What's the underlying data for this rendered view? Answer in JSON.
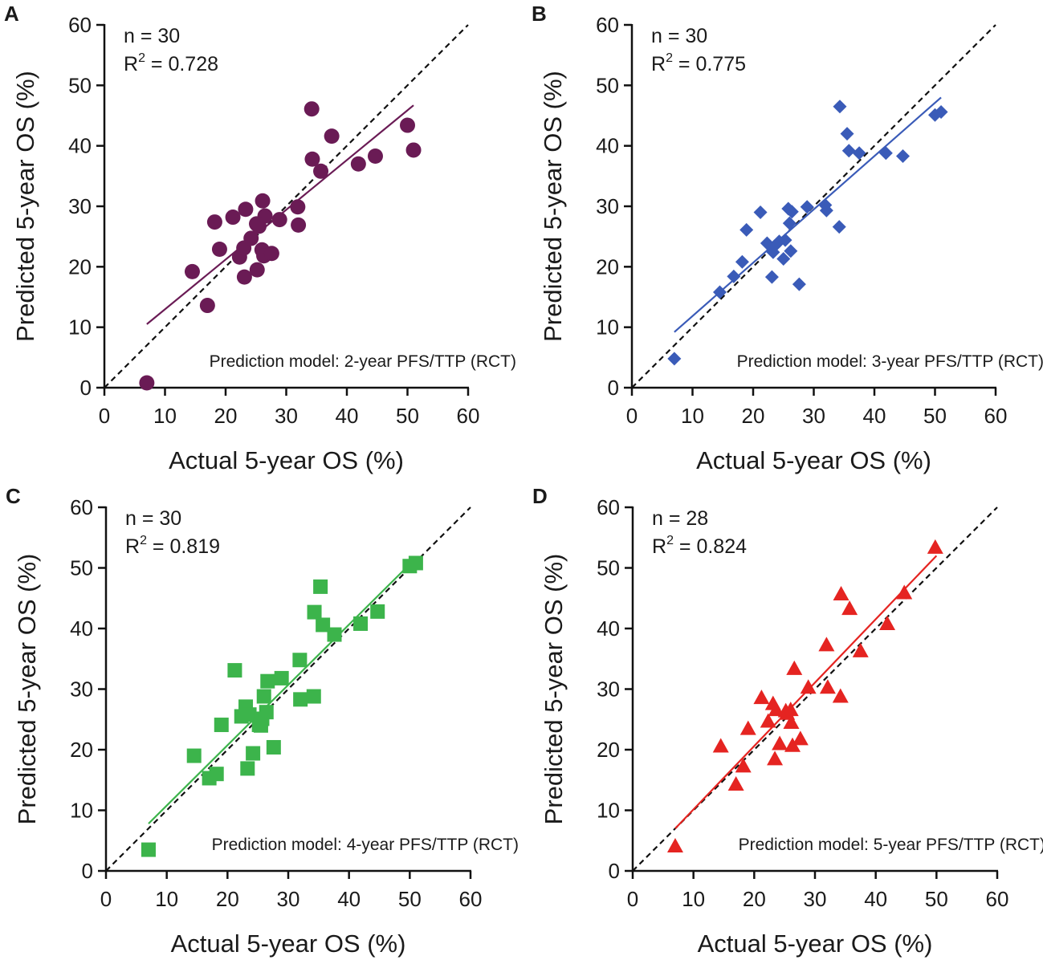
{
  "chart_data": [
    {
      "panel_label": "A",
      "type": "scatter",
      "color": "#6a1b55",
      "marker": "circle",
      "n_text": "n = 30",
      "r2_prefix": "R",
      "r2_sup": "2",
      "r2_value": " = 0.728",
      "annotation": "Prediction model: 2-year PFS/TTP (RCT)",
      "xlabel": "Actual 5-year OS (%)",
      "ylabel": "Predicted 5-year OS (%)",
      "xlim": [
        0,
        60
      ],
      "ylim": [
        0,
        60
      ],
      "xticks": [
        0,
        10,
        20,
        30,
        40,
        50,
        60
      ],
      "yticks": [
        0,
        10,
        20,
        30,
        40,
        50,
        60
      ],
      "identity_line": [
        [
          0,
          0
        ],
        [
          60,
          60
        ]
      ],
      "fit_line": [
        [
          7,
          10.5
        ],
        [
          51,
          46.7
        ]
      ],
      "points": [
        [
          7,
          0.8
        ],
        [
          14.5,
          19.2
        ],
        [
          17,
          13.6
        ],
        [
          18.2,
          27.4
        ],
        [
          19,
          22.9
        ],
        [
          21.2,
          28.2
        ],
        [
          22.3,
          21.6
        ],
        [
          23.1,
          18.3
        ],
        [
          23,
          23.1
        ],
        [
          23.3,
          29.5
        ],
        [
          24.2,
          24.7
        ],
        [
          25.2,
          19.5
        ],
        [
          25.5,
          26.7
        ],
        [
          26,
          22.8
        ],
        [
          26.1,
          30.9
        ],
        [
          26.3,
          21.8
        ],
        [
          26.5,
          28.4
        ],
        [
          27.6,
          22.2
        ],
        [
          28.9,
          27.8
        ],
        [
          31.9,
          29.9
        ],
        [
          32,
          26.9
        ],
        [
          34.2,
          46.1
        ],
        [
          34.3,
          37.8
        ],
        [
          35.7,
          35.8
        ],
        [
          37.5,
          41.6
        ],
        [
          41.9,
          37
        ],
        [
          44.7,
          38.3
        ],
        [
          50,
          43.4
        ],
        [
          51,
          39.3
        ],
        [
          25.1,
          27.1
        ]
      ]
    },
    {
      "panel_label": "B",
      "type": "scatter",
      "color": "#3a5bb8",
      "marker": "diamond",
      "n_text": "n = 30",
      "r2_prefix": "R",
      "r2_sup": "2",
      "r2_value": " = 0.775",
      "annotation": "Prediction model: 3-year PFS/TTP (RCT)",
      "xlabel": "Actual 5-year OS (%)",
      "ylabel": "Predicted 5-year OS (%)",
      "xlim": [
        0,
        60
      ],
      "ylim": [
        0,
        60
      ],
      "xticks": [
        0,
        10,
        20,
        30,
        40,
        50,
        60
      ],
      "yticks": [
        0,
        10,
        20,
        30,
        40,
        50,
        60
      ],
      "identity_line": [
        [
          0,
          0
        ],
        [
          60,
          60
        ]
      ],
      "fit_line": [
        [
          7,
          9.2
        ],
        [
          51,
          48
        ]
      ],
      "points": [
        [
          7,
          4.8
        ],
        [
          14.5,
          15.8
        ],
        [
          16.8,
          18.4
        ],
        [
          18.2,
          20.8
        ],
        [
          18.9,
          26.1
        ],
        [
          21.2,
          29
        ],
        [
          22.3,
          23.9
        ],
        [
          23.1,
          18.3
        ],
        [
          23.3,
          22.4
        ],
        [
          23.5,
          23.4
        ],
        [
          24.3,
          24.2
        ],
        [
          25,
          21.3
        ],
        [
          25.3,
          24.4
        ],
        [
          25.8,
          29.6
        ],
        [
          26,
          27.2
        ],
        [
          26.2,
          22.6
        ],
        [
          26.4,
          29.1
        ],
        [
          27.6,
          17.1
        ],
        [
          28.9,
          29.9
        ],
        [
          31.9,
          30.2
        ],
        [
          32.1,
          29.3
        ],
        [
          34.2,
          26.6
        ],
        [
          34.3,
          46.5
        ],
        [
          35.5,
          42
        ],
        [
          35.8,
          39.2
        ],
        [
          37.5,
          38.8
        ],
        [
          41.9,
          38.8
        ],
        [
          44.7,
          38.3
        ],
        [
          50,
          45.1
        ],
        [
          51,
          45.6
        ]
      ]
    },
    {
      "panel_label": "C",
      "type": "scatter",
      "color": "#3cb44b",
      "marker": "square",
      "n_text": "n = 30",
      "r2_prefix": "R",
      "r2_sup": "2",
      "r2_value": " = 0.819",
      "annotation": "Prediction model: 4-year PFS/TTP (RCT)",
      "xlabel": "Actual 5-year OS (%)",
      "ylabel": "Predicted 5-year OS (%)",
      "xlim": [
        0,
        60
      ],
      "ylim": [
        0,
        60
      ],
      "xticks": [
        0,
        10,
        20,
        30,
        40,
        50,
        60
      ],
      "yticks": [
        0,
        10,
        20,
        30,
        40,
        50,
        60
      ],
      "identity_line": [
        [
          0,
          0
        ],
        [
          60,
          60
        ]
      ],
      "fit_line": [
        [
          7,
          7.8
        ],
        [
          51,
          51.6
        ]
      ],
      "points": [
        [
          7,
          3.5
        ],
        [
          14.5,
          19
        ],
        [
          17,
          15.3
        ],
        [
          18.2,
          16
        ],
        [
          19,
          24.1
        ],
        [
          21.2,
          33.1
        ],
        [
          22.3,
          25.5
        ],
        [
          23,
          27.1
        ],
        [
          23.3,
          16.9
        ],
        [
          23.6,
          25.8
        ],
        [
          24.2,
          19.4
        ],
        [
          25.2,
          24.1
        ],
        [
          25.7,
          25.1
        ],
        [
          26,
          28.8
        ],
        [
          26.4,
          26.2
        ],
        [
          26.6,
          31.3
        ],
        [
          27.6,
          20.4
        ],
        [
          28.9,
          31.8
        ],
        [
          31.9,
          34.8
        ],
        [
          32,
          28.3
        ],
        [
          34.2,
          28.8
        ],
        [
          34.3,
          42.7
        ],
        [
          35.3,
          46.9
        ],
        [
          35.7,
          40.6
        ],
        [
          37.6,
          39
        ],
        [
          41.9,
          40.8
        ],
        [
          44.7,
          42.8
        ],
        [
          50,
          50.3
        ],
        [
          51,
          50.8
        ],
        [
          25.5,
          24
        ]
      ]
    },
    {
      "panel_label": "D",
      "type": "scatter",
      "color": "#e52421",
      "marker": "triangle",
      "n_text": "n = 28",
      "r2_prefix": "R",
      "r2_sup": "2",
      "r2_value": " = 0.824",
      "annotation": "Prediction model: 5-year PFS/TTP (RCT)",
      "xlabel": "Actual 5-year OS (%)",
      "ylabel": "Predicted 5-year OS (%)",
      "xlim": [
        0,
        60
      ],
      "ylim": [
        0,
        60
      ],
      "xticks": [
        0,
        10,
        20,
        30,
        40,
        50,
        60
      ],
      "yticks": [
        0,
        10,
        20,
        30,
        40,
        50,
        60
      ],
      "identity_line": [
        [
          0,
          0
        ],
        [
          60,
          60
        ]
      ],
      "fit_line": [
        [
          7,
          7
        ],
        [
          50,
          52
        ]
      ],
      "points": [
        [
          7,
          4.1
        ],
        [
          14.5,
          20.6
        ],
        [
          17,
          14.3
        ],
        [
          18.2,
          17.3
        ],
        [
          19,
          23.5
        ],
        [
          21.2,
          28.6
        ],
        [
          22.3,
          24.7
        ],
        [
          23.1,
          27.6
        ],
        [
          23.4,
          18.5
        ],
        [
          23.6,
          26.6
        ],
        [
          24.2,
          21
        ],
        [
          25.2,
          26.4
        ],
        [
          26,
          26.6
        ],
        [
          26.1,
          24.5
        ],
        [
          26.3,
          20.7
        ],
        [
          26.6,
          33.4
        ],
        [
          27.6,
          21.8
        ],
        [
          28.9,
          30.3
        ],
        [
          31.9,
          37.3
        ],
        [
          32.1,
          30.3
        ],
        [
          34.2,
          28.8
        ],
        [
          34.3,
          45.7
        ],
        [
          35.7,
          43.3
        ],
        [
          37.5,
          36.3
        ],
        [
          41.9,
          40.8
        ],
        [
          44.7,
          45.9
        ],
        [
          49.8,
          53.4
        ],
        [
          25.4,
          26
        ]
      ]
    }
  ]
}
